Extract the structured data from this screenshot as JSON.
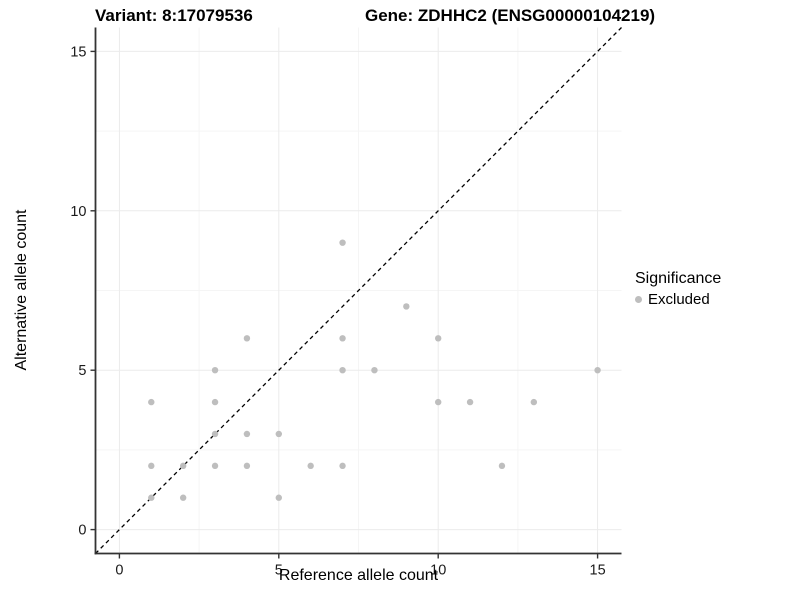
{
  "header": {
    "variant_title": "Variant: 8:17079536",
    "gene_title": "Gene: ZDHHC2 (ENSG00000104219)"
  },
  "legend": {
    "title": "Significance",
    "items": [
      {
        "label": "Excluded",
        "color": "#bebebe"
      }
    ],
    "position": "right"
  },
  "colors": {
    "point": "#bebebe",
    "major_grid": "#ebebeb",
    "minor_grid": "#f5f5f5",
    "axis_line": "#333333",
    "tick_label": "#1a1a1a",
    "reference_line": "#000000",
    "background": "#ffffff"
  },
  "chart_data": {
    "type": "scatter",
    "title": "Variant: 8:17079536  |  Gene: ZDHHC2 (ENSG00000104219)",
    "xlabel": "Reference allele count",
    "ylabel": "Alternative allele count",
    "xlim": [
      -0.75,
      15.75
    ],
    "ylim": [
      -0.75,
      15.75
    ],
    "x_major_ticks": [
      0,
      5,
      10,
      15
    ],
    "y_major_ticks": [
      0,
      5,
      10,
      15
    ],
    "x_minor_ticks": [
      2.5,
      7.5,
      12.5
    ],
    "y_minor_ticks": [
      2.5,
      7.5,
      12.5
    ],
    "grid": "major+minor",
    "legend_position": "right",
    "reference_line": "dashed identity line y = x from bottom-left to top-right corner",
    "series": [
      {
        "name": "Excluded",
        "color": "#bebebe",
        "marker": "circle",
        "points": [
          [
            1,
            1
          ],
          [
            1,
            2
          ],
          [
            1,
            4
          ],
          [
            2,
            1
          ],
          [
            2,
            2
          ],
          [
            3,
            2
          ],
          [
            3,
            3
          ],
          [
            3,
            4
          ],
          [
            3,
            5
          ],
          [
            4,
            2
          ],
          [
            4,
            3
          ],
          [
            4,
            6
          ],
          [
            5,
            1
          ],
          [
            5,
            3
          ],
          [
            6,
            2
          ],
          [
            7,
            2
          ],
          [
            7,
            5
          ],
          [
            7,
            6
          ],
          [
            7,
            9
          ],
          [
            8,
            5
          ],
          [
            9,
            7
          ],
          [
            10,
            4
          ],
          [
            10,
            6
          ],
          [
            11,
            4
          ],
          [
            12,
            2
          ],
          [
            13,
            4
          ],
          [
            15,
            5
          ]
        ]
      }
    ]
  }
}
